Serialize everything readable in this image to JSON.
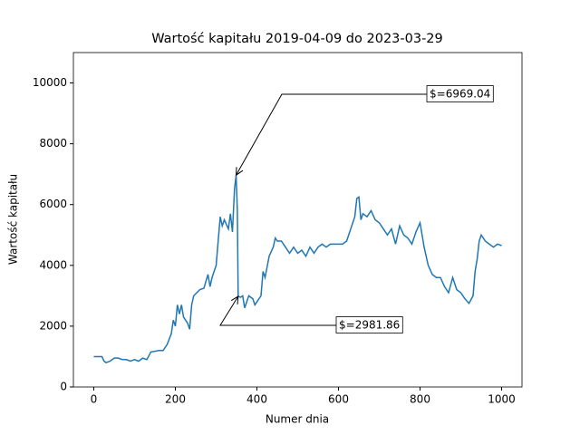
{
  "chart_data": {
    "type": "line",
    "title": "Wartość kapitału 2019-04-09 do 2023-03-29",
    "x_label": "Numer dnia",
    "y_label": "Wartość kapitału",
    "xlim": [
      -50,
      1050
    ],
    "ylim": [
      0,
      11000
    ],
    "xticks": [
      0,
      200,
      400,
      600,
      800,
      1000
    ],
    "yticks": [
      0,
      2000,
      4000,
      6000,
      8000,
      10000
    ],
    "series": [
      {
        "color": "#1f77b4",
        "x": [
          0,
          20,
          25,
          30,
          40,
          50,
          60,
          70,
          80,
          90,
          100,
          110,
          120,
          130,
          140,
          160,
          170,
          180,
          190,
          195,
          200,
          205,
          210,
          215,
          220,
          230,
          235,
          240,
          245,
          260,
          270,
          280,
          285,
          290,
          300,
          305,
          310,
          315,
          320,
          330,
          335,
          340,
          345,
          349,
          352,
          354,
          360,
          365,
          370,
          380,
          390,
          395,
          400,
          410,
          415,
          420,
          430,
          440,
          445,
          450,
          460,
          470,
          480,
          490,
          500,
          510,
          520,
          530,
          540,
          550,
          560,
          570,
          580,
          590,
          600,
          610,
          620,
          630,
          640,
          645,
          650,
          655,
          660,
          670,
          680,
          690,
          700,
          710,
          720,
          730,
          740,
          750,
          760,
          770,
          780,
          790,
          800,
          810,
          820,
          830,
          840,
          850,
          860,
          870,
          880,
          890,
          900,
          910,
          920,
          930,
          935,
          940,
          945,
          950,
          960,
          970,
          980,
          990,
          1000
        ],
        "values": [
          1000,
          1000,
          850,
          800,
          850,
          950,
          950,
          900,
          900,
          850,
          900,
          850,
          950,
          900,
          1150,
          1200,
          1200,
          1400,
          1750,
          2200,
          2000,
          2700,
          2400,
          2700,
          2300,
          2100,
          1900,
          2700,
          3000,
          3200,
          3250,
          3700,
          3300,
          3600,
          4000,
          4800,
          5600,
          5300,
          5500,
          5200,
          5700,
          5100,
          6500,
          6969.04,
          5800,
          2981.86,
          2950,
          3000,
          2600,
          3000,
          2900,
          2700,
          2800,
          3000,
          3800,
          3600,
          4300,
          4600,
          4900,
          4800,
          4800,
          4600,
          4400,
          4600,
          4400,
          4500,
          4300,
          4600,
          4400,
          4600,
          4700,
          4600,
          4700,
          4700,
          4700,
          4700,
          4800,
          5200,
          5600,
          6200,
          6250,
          5500,
          5700,
          5600,
          5800,
          5500,
          5400,
          5200,
          5000,
          5200,
          4700,
          5300,
          5000,
          4900,
          4700,
          5100,
          5400,
          4600,
          4000,
          3700,
          3600,
          3600,
          3300,
          3100,
          3600,
          3200,
          3100,
          2900,
          2750,
          3000,
          3800,
          4200,
          4800,
          5000,
          4800,
          4700,
          4600,
          4700,
          4650
        ]
      }
    ],
    "annotations": [
      {
        "label": "$=6969.04",
        "value": 6969.04,
        "x": 349
      },
      {
        "label": "$=2981.86",
        "value": 2981.86,
        "x": 354
      }
    ]
  }
}
